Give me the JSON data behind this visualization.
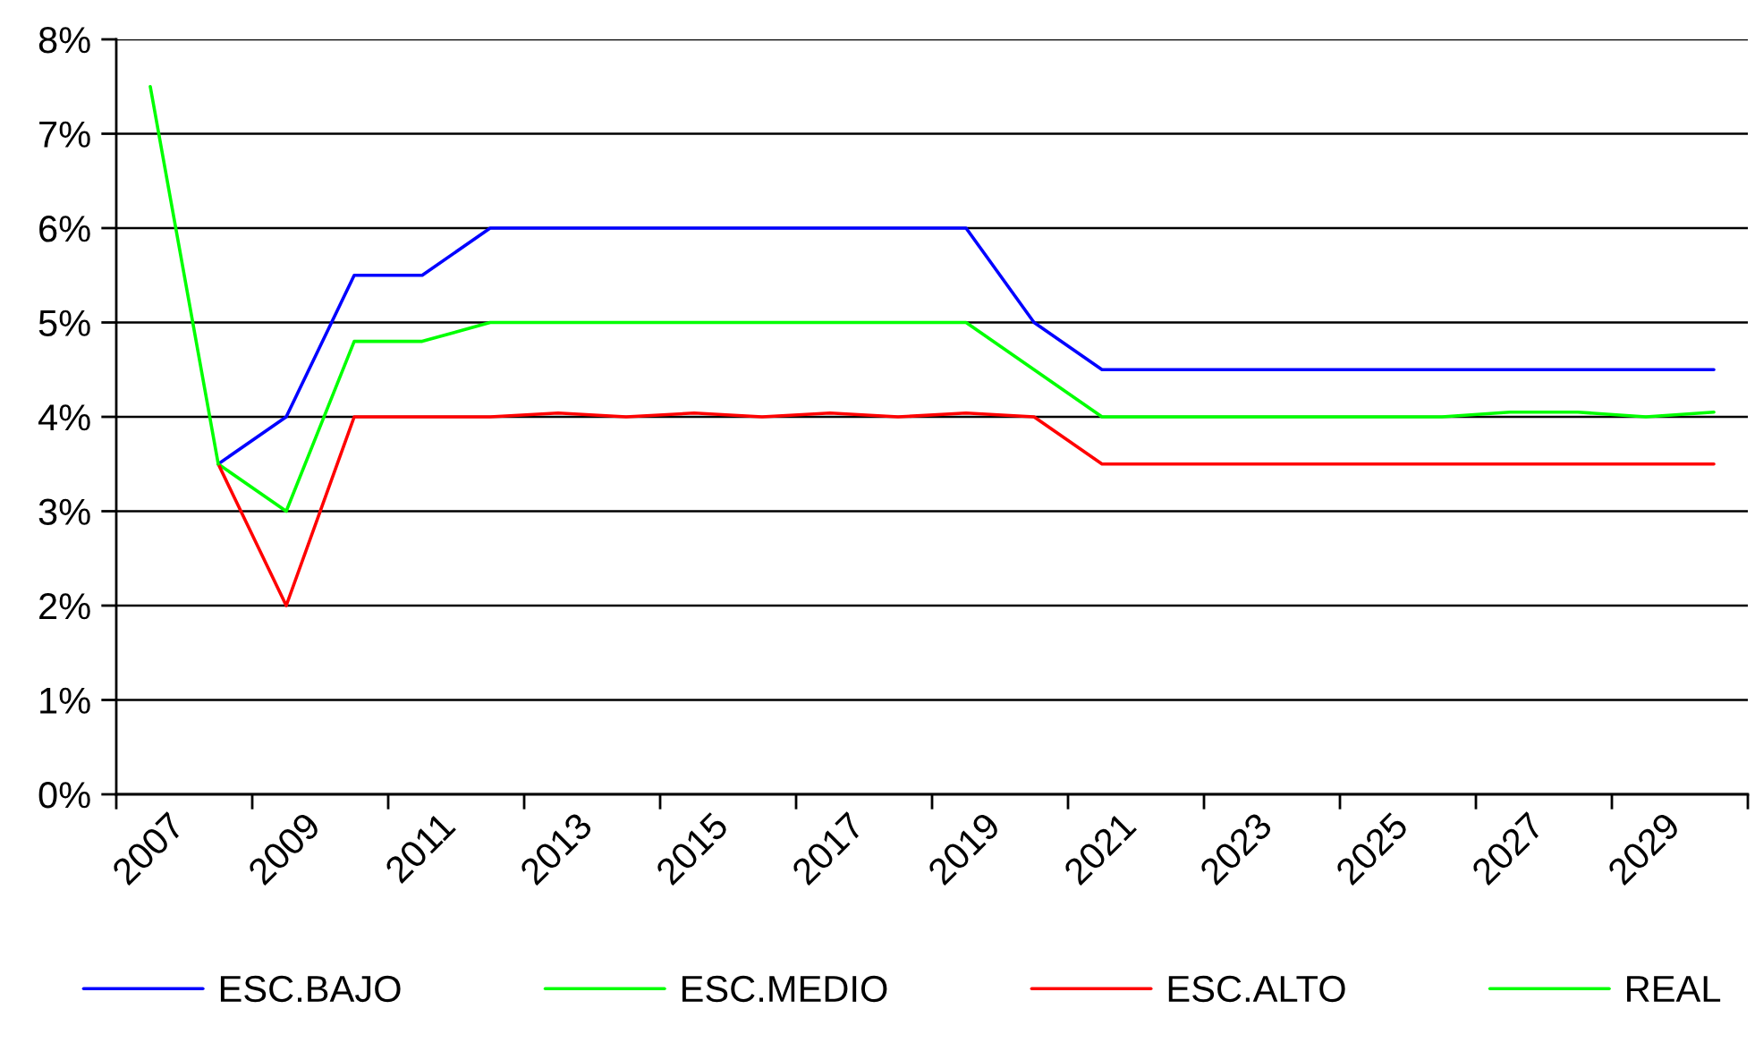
{
  "chart_data": {
    "type": "line",
    "categories": [
      "2007",
      null,
      "2009",
      null,
      "2011",
      null,
      "2013",
      null,
      "2015",
      null,
      "2017",
      null,
      "2019",
      null,
      "2021",
      null,
      "2023",
      null,
      "2025",
      null,
      "2027",
      null,
      "2029",
      null
    ],
    "ylim": [
      0,
      8
    ],
    "yticks": [
      {
        "value": 0,
        "label": "0%"
      },
      {
        "value": 1,
        "label": "1%"
      },
      {
        "value": 2,
        "label": "2%"
      },
      {
        "value": 3,
        "label": "3%"
      },
      {
        "value": 4,
        "label": "4%"
      },
      {
        "value": 5,
        "label": "5%"
      },
      {
        "value": 6,
        "label": "6%"
      },
      {
        "value": 7,
        "label": "7%"
      },
      {
        "value": 8,
        "label": "8%"
      }
    ],
    "grid": "y",
    "legend": "bottom",
    "marker": "none",
    "line_style": "solid",
    "series": [
      {
        "name": "ESC.BAJO",
        "color": "#0000ff",
        "values": [
          null,
          3.5,
          4.0,
          5.5,
          5.5,
          6.0,
          6.0,
          6.0,
          6.0,
          6.0,
          6.0,
          6.0,
          6.0,
          5.0,
          4.5,
          4.5,
          4.5,
          4.5,
          4.5,
          4.5,
          4.5,
          4.5,
          4.5,
          4.5
        ]
      },
      {
        "name": "ESC.MEDIO",
        "color": "#00ff00",
        "values": [
          null,
          3.5,
          3.0,
          4.8,
          4.8,
          5.0,
          5.0,
          5.0,
          5.0,
          5.0,
          5.0,
          5.0,
          5.0,
          4.5,
          4.0,
          4.0,
          4.0,
          4.0,
          4.0,
          4.0,
          4.05,
          4.05,
          4.0,
          4.05
        ]
      },
      {
        "name": "ESC.ALTO",
        "color": "#ff0000",
        "values": [
          null,
          3.5,
          2.0,
          4.0,
          4.0,
          4.0,
          4.04,
          4.0,
          4.04,
          4.0,
          4.04,
          4.0,
          4.04,
          4.0,
          3.5,
          3.5,
          3.5,
          3.5,
          3.5,
          3.5,
          3.5,
          3.5,
          3.5,
          3.5
        ]
      },
      {
        "name": "REAL",
        "color": "#00ff00",
        "values": [
          7.5,
          3.5,
          null,
          null,
          null,
          null,
          null,
          null,
          null,
          null,
          null,
          null,
          null,
          null,
          null,
          null,
          null,
          null,
          null,
          null,
          null,
          null,
          null,
          null
        ]
      }
    ]
  }
}
